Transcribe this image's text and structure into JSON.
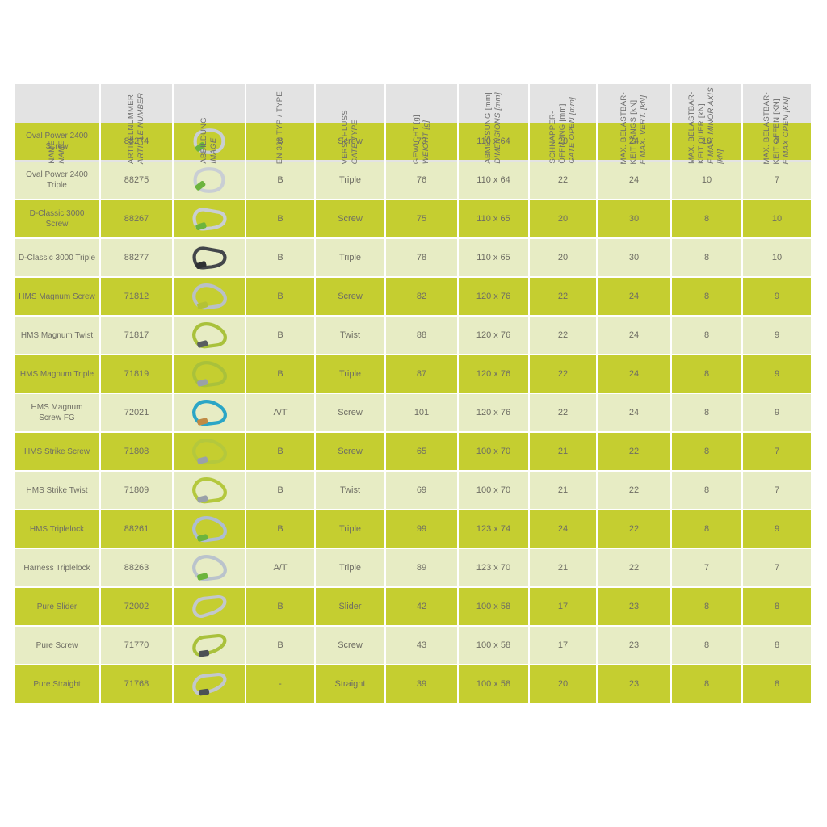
{
  "colors": {
    "row_dark": "#c5ce30",
    "row_light": "#e7ecc4",
    "header_bg": "#e3e3e3",
    "header_text": "#6d6d6d",
    "cell_text": "#6f6e64",
    "page_bg": "#ffffff"
  },
  "table": {
    "columns": [
      {
        "id": "name",
        "de": "NAME",
        "en": "NAME"
      },
      {
        "id": "article",
        "de": "ARTIKELNUMMER",
        "en": "ARTICLE NUMBER"
      },
      {
        "id": "image",
        "de": "ABBILDUNG",
        "en": "IMAGE"
      },
      {
        "id": "en362",
        "de": "EN 362 TYP / TYPE",
        "en": ""
      },
      {
        "id": "gate",
        "de": "VERSCHLUSS",
        "en": "GATE TYPE"
      },
      {
        "id": "weight",
        "de": "GEWICHT [g]",
        "en": "WEIGHT [g]"
      },
      {
        "id": "dimensions",
        "de": "ABMESSUNG [mm]",
        "en": "DIMENSIONS [mm]"
      },
      {
        "id": "gate_open",
        "de": "SCHNAPPER-\nÖFFNUNG [mm]",
        "en": "GATE OPEN [mm]"
      },
      {
        "id": "f_vert",
        "de": "MAX. BELASTBAR-\nKEIT LÄNGS [kN]",
        "en": "F MAX. VERT. [kN]"
      },
      {
        "id": "f_minor",
        "de": "MAX. BELASTBAR-\nKEIT QUER [kN]",
        "en": "F MAX. MINOR AXIS\n[kN]"
      },
      {
        "id": "f_open",
        "de": "MAX. BELASTBAR-\nKEIT OFFEN [KN]",
        "en": "F MAX OPEN [KN]"
      }
    ],
    "rows": [
      {
        "name": "Oval Power 2400\nScrew",
        "article": "88274",
        "image": {
          "shape": "oval",
          "body": "#c9ced4",
          "sleeve": "#6cb43d"
        },
        "en362": "B",
        "gate": "Screw",
        "weight": "73",
        "dimensions": "110 x 64",
        "gate_open": "20",
        "f_vert": "24",
        "f_minor": "10",
        "f_open": "7"
      },
      {
        "name": "Oval Power 2400\nTriple",
        "article": "88275",
        "image": {
          "shape": "oval",
          "body": "#c9ced4",
          "sleeve": "#6cb43d"
        },
        "en362": "B",
        "gate": "Triple",
        "weight": "76",
        "dimensions": "110 x 64",
        "gate_open": "22",
        "f_vert": "24",
        "f_minor": "10",
        "f_open": "7"
      },
      {
        "name": "D-Classic 3000\nScrew",
        "article": "88267",
        "image": {
          "shape": "d",
          "body": "#c9ced4",
          "sleeve": "#6cb43d"
        },
        "en362": "B",
        "gate": "Screw",
        "weight": "75",
        "dimensions": "110 x 65",
        "gate_open": "20",
        "f_vert": "30",
        "f_minor": "8",
        "f_open": "10"
      },
      {
        "name": "D-Classic 3000 Triple",
        "article": "88277",
        "image": {
          "shape": "d",
          "body": "#43464a",
          "sleeve": "#2e3033"
        },
        "en362": "B",
        "gate": "Triple",
        "weight": "78",
        "dimensions": "110 x 65",
        "gate_open": "20",
        "f_vert": "30",
        "f_minor": "8",
        "f_open": "10"
      },
      {
        "name": "HMS Magnum Screw",
        "article": "71812",
        "image": {
          "shape": "hms",
          "body": "#b9c0c7",
          "sleeve": "#b4c234"
        },
        "en362": "B",
        "gate": "Screw",
        "weight": "82",
        "dimensions": "120 x 76",
        "gate_open": "22",
        "f_vert": "24",
        "f_minor": "8",
        "f_open": "9"
      },
      {
        "name": "HMS Magnum Twist",
        "article": "71817",
        "image": {
          "shape": "hms",
          "body": "#a9c13b",
          "sleeve": "#585c60"
        },
        "en362": "B",
        "gate": "Twist",
        "weight": "88",
        "dimensions": "120 x 76",
        "gate_open": "22",
        "f_vert": "24",
        "f_minor": "8",
        "f_open": "9"
      },
      {
        "name": "HMS Magnum Triple",
        "article": "71819",
        "image": {
          "shape": "hms",
          "body": "#a9c13b",
          "sleeve": "#9aa1a8"
        },
        "en362": "B",
        "gate": "Triple",
        "weight": "87",
        "dimensions": "120 x 76",
        "gate_open": "22",
        "f_vert": "24",
        "f_minor": "8",
        "f_open": "9"
      },
      {
        "name": "HMS Magnum\nScrew FG",
        "article": "72021",
        "image": {
          "shape": "hms",
          "body": "#2ba6c6",
          "sleeve": "#c08b45"
        },
        "en362": "A/T",
        "gate": "Screw",
        "weight": "101",
        "dimensions": "120 x 76",
        "gate_open": "22",
        "f_vert": "24",
        "f_minor": "8",
        "f_open": "9"
      },
      {
        "name": "HMS Strike Screw",
        "article": "71808",
        "image": {
          "shape": "hms",
          "body": "#b4c83d",
          "sleeve": "#9aa1a8"
        },
        "en362": "B",
        "gate": "Screw",
        "weight": "65",
        "dimensions": "100 x 70",
        "gate_open": "21",
        "f_vert": "22",
        "f_minor": "8",
        "f_open": "7"
      },
      {
        "name": "HMS Strike Twist",
        "article": "71809",
        "image": {
          "shape": "hms",
          "body": "#b4c83d",
          "sleeve": "#9aa1a8"
        },
        "en362": "B",
        "gate": "Twist",
        "weight": "69",
        "dimensions": "100 x 70",
        "gate_open": "21",
        "f_vert": "22",
        "f_minor": "8",
        "f_open": "7"
      },
      {
        "name": "HMS Triplelock",
        "article": "88261",
        "image": {
          "shape": "hms",
          "body": "#aebdd2",
          "sleeve": "#6cb43d"
        },
        "en362": "B",
        "gate": "Triple",
        "weight": "99",
        "dimensions": "123 x 74",
        "gate_open": "24",
        "f_vert": "22",
        "f_minor": "8",
        "f_open": "9"
      },
      {
        "name": "Harness Triplelock",
        "article": "88263",
        "image": {
          "shape": "hms",
          "body": "#bac3cc",
          "sleeve": "#6cb43d"
        },
        "en362": "A/T",
        "gate": "Triple",
        "weight": "89",
        "dimensions": "123 x 70",
        "gate_open": "21",
        "f_vert": "22",
        "f_minor": "7",
        "f_open": "7"
      },
      {
        "name": "Pure Slider",
        "article": "72002",
        "image": {
          "shape": "pure",
          "body": "#c2c7cd",
          "sleeve": "none"
        },
        "en362": "B",
        "gate": "Slider",
        "weight": "42",
        "dimensions": "100 x 58",
        "gate_open": "17",
        "f_vert": "23",
        "f_minor": "8",
        "f_open": "8"
      },
      {
        "name": "Pure Screw",
        "article": "71770",
        "image": {
          "shape": "pure",
          "body": "#a9c13b",
          "sleeve": "#4b5055"
        },
        "en362": "B",
        "gate": "Screw",
        "weight": "43",
        "dimensions": "100 x 58",
        "gate_open": "17",
        "f_vert": "23",
        "f_minor": "8",
        "f_open": "8"
      },
      {
        "name": "Pure Straight",
        "article": "71768",
        "image": {
          "shape": "pure",
          "body": "#c2c7cd",
          "sleeve": "#4b5055"
        },
        "en362": "-",
        "gate": "Straight",
        "weight": "39",
        "dimensions": "100 x 58",
        "gate_open": "20",
        "f_vert": "23",
        "f_minor": "8",
        "f_open": "8"
      }
    ]
  }
}
